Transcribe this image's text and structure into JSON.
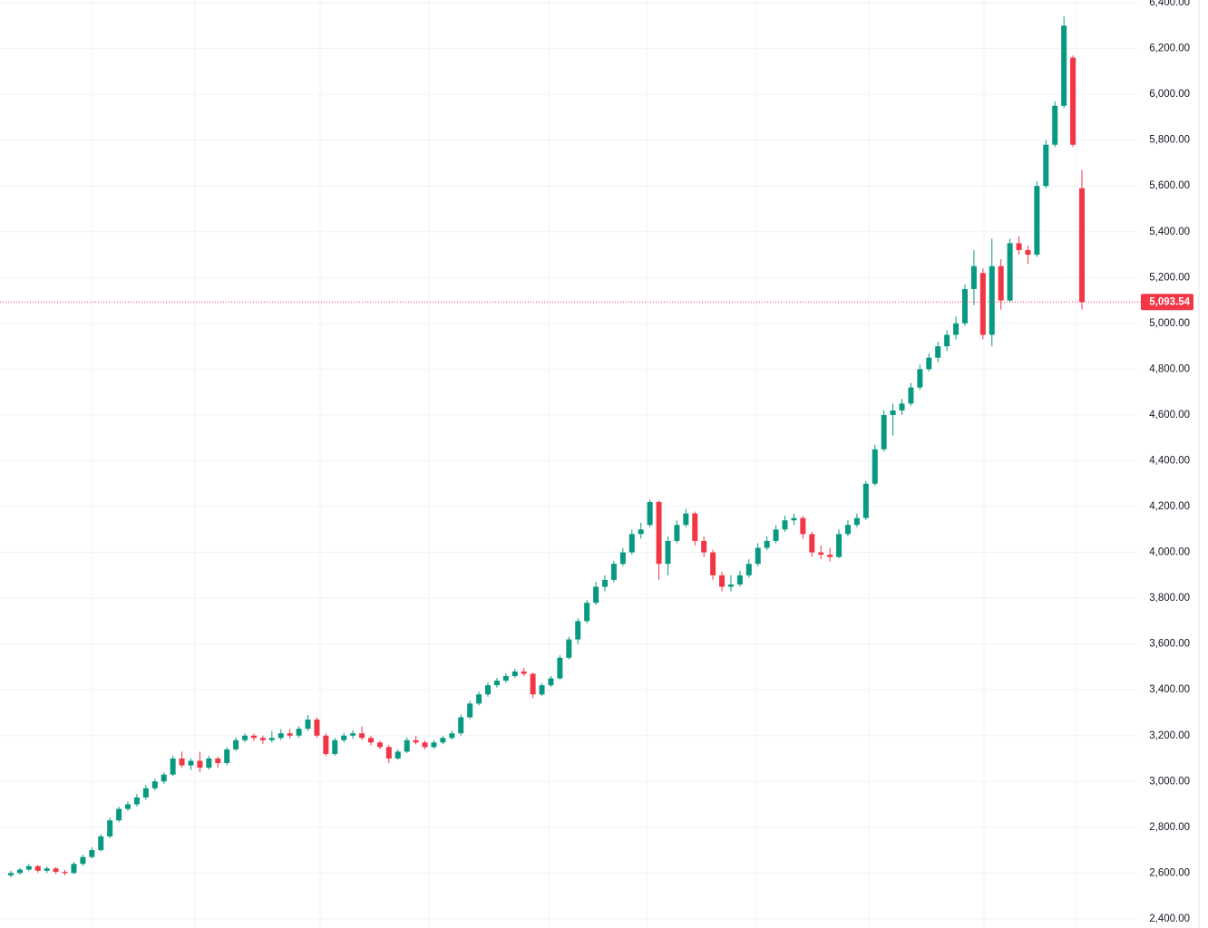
{
  "chart_data": {
    "type": "candlestick",
    "up_color": "#089981",
    "down_color": "#f23645",
    "ylim": [
      2360,
      6412
    ],
    "yticks": [
      {
        "value": 2400,
        "label": "2,400.00"
      },
      {
        "value": 2600,
        "label": "2,600.00"
      },
      {
        "value": 2800,
        "label": "2,800.00"
      },
      {
        "value": 3000,
        "label": "3,000.00"
      },
      {
        "value": 3200,
        "label": "3,200.00"
      },
      {
        "value": 3400,
        "label": "3,400.00"
      },
      {
        "value": 3600,
        "label": "3,600.00"
      },
      {
        "value": 3800,
        "label": "3,800.00"
      },
      {
        "value": 4000,
        "label": "4,000.00"
      },
      {
        "value": 4200,
        "label": "4,200.00"
      },
      {
        "value": 4400,
        "label": "4,400.00"
      },
      {
        "value": 4600,
        "label": "4,600.00"
      },
      {
        "value": 4800,
        "label": "4,800.00"
      },
      {
        "value": 5000,
        "label": "5,000.00"
      },
      {
        "value": 5200,
        "label": "5,200.00"
      },
      {
        "value": 5400,
        "label": "5,400.00"
      },
      {
        "value": 5600,
        "label": "5,600.00"
      },
      {
        "value": 5800,
        "label": "5,800.00"
      },
      {
        "value": 6000,
        "label": "6,000.00"
      },
      {
        "value": 6200,
        "label": "6,200.00"
      },
      {
        "value": 6400,
        "label": "6,400.00"
      }
    ],
    "grid": true,
    "last_price": {
      "value": 5093.54,
      "label": "5,093.54"
    },
    "candles": [
      [
        2590,
        2610,
        2580,
        2600
      ],
      [
        2600,
        2622,
        2594,
        2615
      ],
      [
        2615,
        2640,
        2608,
        2630
      ],
      [
        2630,
        2636,
        2602,
        2610
      ],
      [
        2610,
        2628,
        2600,
        2620
      ],
      [
        2620,
        2626,
        2596,
        2605
      ],
      [
        2605,
        2614,
        2590,
        2600
      ],
      [
        2600,
        2648,
        2596,
        2640
      ],
      [
        2640,
        2680,
        2632,
        2670
      ],
      [
        2670,
        2712,
        2664,
        2700
      ],
      [
        2700,
        2770,
        2694,
        2760
      ],
      [
        2760,
        2842,
        2752,
        2830
      ],
      [
        2830,
        2890,
        2822,
        2880
      ],
      [
        2880,
        2912,
        2870,
        2900
      ],
      [
        2900,
        2945,
        2890,
        2930
      ],
      [
        2930,
        2985,
        2920,
        2970
      ],
      [
        2970,
        3012,
        2960,
        3000
      ],
      [
        3000,
        3040,
        2990,
        3030
      ],
      [
        3030,
        3112,
        3024,
        3100
      ],
      [
        3100,
        3130,
        3060,
        3070
      ],
      [
        3070,
        3100,
        3050,
        3090
      ],
      [
        3090,
        3130,
        3040,
        3060
      ],
      [
        3060,
        3112,
        3052,
        3100
      ],
      [
        3100,
        3108,
        3060,
        3080
      ],
      [
        3080,
        3150,
        3070,
        3140
      ],
      [
        3140,
        3192,
        3132,
        3180
      ],
      [
        3180,
        3210,
        3170,
        3200
      ],
      [
        3200,
        3208,
        3176,
        3190
      ],
      [
        3190,
        3200,
        3164,
        3180
      ],
      [
        3180,
        3220,
        3170,
        3190
      ],
      [
        3190,
        3228,
        3180,
        3210
      ],
      [
        3210,
        3230,
        3186,
        3200
      ],
      [
        3200,
        3242,
        3190,
        3230
      ],
      [
        3230,
        3290,
        3220,
        3270
      ],
      [
        3270,
        3280,
        3190,
        3200
      ],
      [
        3200,
        3210,
        3110,
        3120
      ],
      [
        3120,
        3190,
        3112,
        3180
      ],
      [
        3180,
        3212,
        3170,
        3200
      ],
      [
        3200,
        3224,
        3186,
        3210
      ],
      [
        3210,
        3240,
        3180,
        3190
      ],
      [
        3190,
        3200,
        3158,
        3170
      ],
      [
        3170,
        3178,
        3140,
        3150
      ],
      [
        3150,
        3160,
        3080,
        3100
      ],
      [
        3100,
        3140,
        3094,
        3130
      ],
      [
        3130,
        3192,
        3124,
        3180
      ],
      [
        3180,
        3198,
        3162,
        3170
      ],
      [
        3170,
        3178,
        3140,
        3150
      ],
      [
        3150,
        3180,
        3142,
        3170
      ],
      [
        3170,
        3200,
        3162,
        3190
      ],
      [
        3190,
        3222,
        3182,
        3210
      ],
      [
        3210,
        3292,
        3200,
        3280
      ],
      [
        3280,
        3352,
        3272,
        3340
      ],
      [
        3340,
        3392,
        3332,
        3380
      ],
      [
        3380,
        3432,
        3370,
        3420
      ],
      [
        3420,
        3452,
        3410,
        3440
      ],
      [
        3440,
        3472,
        3430,
        3460
      ],
      [
        3460,
        3492,
        3452,
        3480
      ],
      [
        3480,
        3496,
        3460,
        3470
      ],
      [
        3470,
        3474,
        3364,
        3380
      ],
      [
        3380,
        3430,
        3372,
        3420
      ],
      [
        3420,
        3460,
        3412,
        3450
      ],
      [
        3450,
        3552,
        3444,
        3540
      ],
      [
        3540,
        3632,
        3532,
        3620
      ],
      [
        3620,
        3712,
        3600,
        3700
      ],
      [
        3700,
        3792,
        3690,
        3780
      ],
      [
        3780,
        3872,
        3770,
        3850
      ],
      [
        3850,
        3900,
        3830,
        3880
      ],
      [
        3880,
        3962,
        3870,
        3950
      ],
      [
        3950,
        4020,
        3940,
        4000
      ],
      [
        4000,
        4100,
        3990,
        4080
      ],
      [
        4080,
        4130,
        4060,
        4100
      ],
      [
        4120,
        4230,
        4110,
        4220
      ],
      [
        4220,
        4226,
        3880,
        3950
      ],
      [
        3950,
        4070,
        3900,
        4050
      ],
      [
        4050,
        4140,
        4040,
        4120
      ],
      [
        4120,
        4190,
        4110,
        4170
      ],
      [
        4170,
        4178,
        4030,
        4050
      ],
      [
        4050,
        4070,
        3980,
        4000
      ],
      [
        4000,
        4012,
        3880,
        3900
      ],
      [
        3900,
        3916,
        3830,
        3850
      ],
      [
        3850,
        3900,
        3830,
        3860
      ],
      [
        3860,
        3920,
        3850,
        3900
      ],
      [
        3900,
        3970,
        3890,
        3950
      ],
      [
        3950,
        4040,
        3940,
        4020
      ],
      [
        4020,
        4070,
        4010,
        4050
      ],
      [
        4050,
        4120,
        4040,
        4100
      ],
      [
        4100,
        4160,
        4090,
        4140
      ],
      [
        4140,
        4170,
        4120,
        4150
      ],
      [
        4150,
        4160,
        4060,
        4080
      ],
      [
        4080,
        4090,
        3980,
        4000
      ],
      [
        4000,
        4030,
        3970,
        3990
      ],
      [
        3990,
        4020,
        3960,
        3980
      ],
      [
        3980,
        4100,
        3975,
        4080
      ],
      [
        4080,
        4140,
        4070,
        4120
      ],
      [
        4120,
        4170,
        4110,
        4150
      ],
      [
        4150,
        4312,
        4142,
        4300
      ],
      [
        4300,
        4470,
        4290,
        4450
      ],
      [
        4450,
        4620,
        4440,
        4600
      ],
      [
        4600,
        4650,
        4510,
        4620
      ],
      [
        4620,
        4670,
        4600,
        4650
      ],
      [
        4650,
        4740,
        4640,
        4720
      ],
      [
        4720,
        4820,
        4710,
        4800
      ],
      [
        4800,
        4870,
        4790,
        4850
      ],
      [
        4850,
        4920,
        4830,
        4900
      ],
      [
        4900,
        4970,
        4880,
        4950
      ],
      [
        4950,
        5030,
        4930,
        5000
      ],
      [
        5000,
        5170,
        4990,
        5150
      ],
      [
        5150,
        5320,
        5080,
        5250
      ],
      [
        5220,
        5240,
        4930,
        4950
      ],
      [
        4950,
        5370,
        4900,
        5250
      ],
      [
        5250,
        5280,
        5060,
        5100
      ],
      [
        5100,
        5370,
        5090,
        5350
      ],
      [
        5350,
        5380,
        5300,
        5320
      ],
      [
        5320,
        5340,
        5260,
        5300
      ],
      [
        5300,
        5620,
        5290,
        5600
      ],
      [
        5600,
        5800,
        5590,
        5780
      ],
      [
        5780,
        5970,
        5770,
        5950
      ],
      [
        5950,
        6340,
        5940,
        6300
      ],
      [
        6160,
        6170,
        5770,
        5780
      ],
      [
        5590,
        5670,
        5060,
        5093.54
      ]
    ]
  }
}
